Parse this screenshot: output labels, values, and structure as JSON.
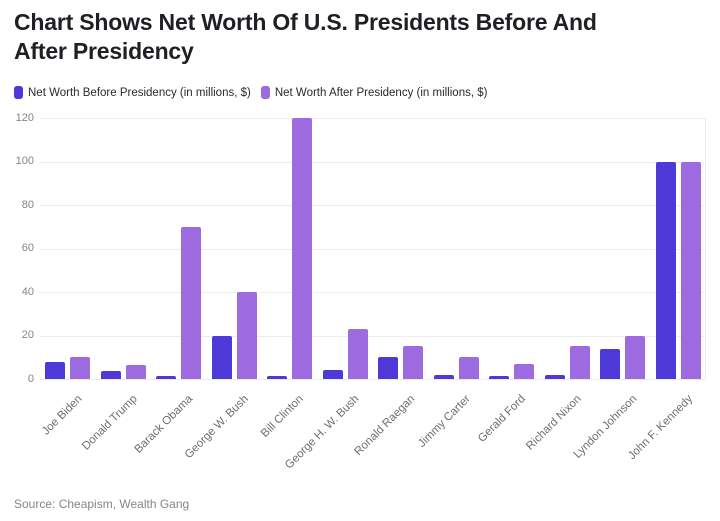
{
  "header": {
    "title_line1": "Chart Shows Net Worth Of U.S. Presidents Before And",
    "title_line2": "After Presidency"
  },
  "footer": {
    "source": "Source: Cheapism, Wealth Gang"
  },
  "colors": {
    "before_bar": "#4f38d8",
    "after_bar": "#9e6ae0",
    "gridline": "#ececf0",
    "background": "#ffffff"
  },
  "chart_data": {
    "type": "bar",
    "title": "Chart Shows Net Worth Of U.S. Presidents Before And After Presidency",
    "categories": [
      "Joe Biden",
      "Donald Trump",
      "Barack Obama",
      "George W. Bush",
      "Bill Clinton",
      "George H. W. Bush",
      "Ronald Raegan",
      "Jimmy Carter",
      "Gerald Ford",
      "Richard Nixon",
      "Lyndon Johnson",
      "John F. Kennedy"
    ],
    "series": [
      {
        "name": "Net Worth Before Presidency (in millions, $)",
        "color": "#4f38d8",
        "values": [
          8,
          3.5,
          1.3,
          20,
          1.3,
          4,
          10,
          2,
          1.3,
          2,
          14,
          100
        ]
      },
      {
        "name": "Net Worth After Presidency (in millions, $)",
        "color": "#9e6ae0",
        "values": [
          10,
          6.5,
          70,
          40,
          120,
          23,
          15,
          10,
          7,
          15,
          20,
          100
        ]
      }
    ],
    "xlabel": "",
    "ylabel": "",
    "ylim": [
      0,
      120
    ],
    "yticks": [
      0,
      20,
      40,
      60,
      80,
      100,
      120
    ],
    "grid": "horizontal",
    "legend_position": "top",
    "source": "Source: Cheapism, Wealth Gang"
  }
}
